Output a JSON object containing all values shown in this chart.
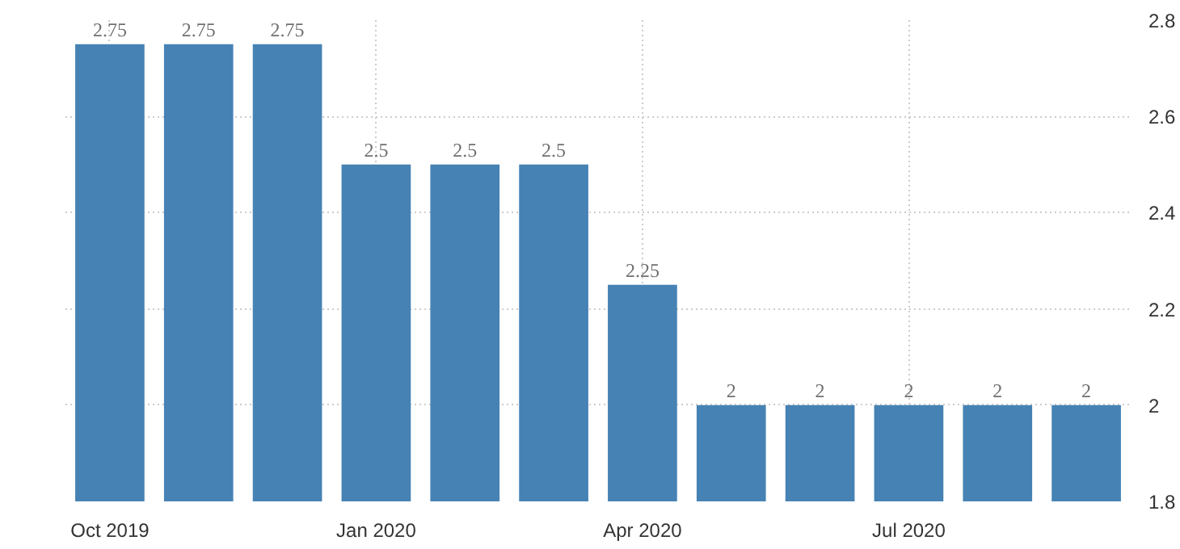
{
  "chart_data": {
    "type": "bar",
    "categories": [
      "Oct 2019",
      null,
      null,
      "Jan 2020",
      null,
      null,
      "Apr 2020",
      null,
      null,
      "Jul 2020",
      null,
      null
    ],
    "values": [
      2.75,
      2.75,
      2.75,
      2.5,
      2.5,
      2.5,
      2.25,
      2,
      2,
      2,
      2,
      2
    ],
    "color": "#4682b4",
    "ylim": [
      1.8,
      2.8
    ],
    "yticks": [
      1.8,
      2,
      2.2,
      2.4,
      2.6,
      2.8
    ],
    "grid": true,
    "data_labels": true
  }
}
